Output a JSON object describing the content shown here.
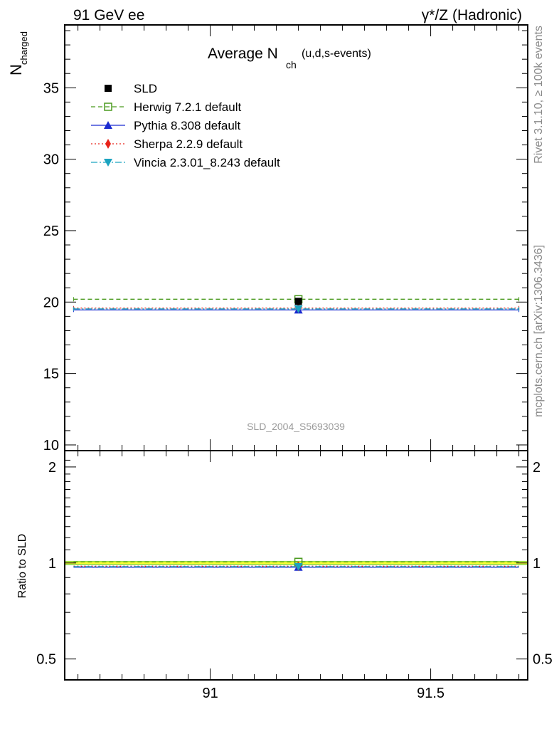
{
  "header": {
    "left": "91 GeV ee",
    "right": "γ*/Z (Hadronic)"
  },
  "side_labels": {
    "rivet": "Rivet 3.1.10, ≥ 100k events",
    "mcplots": "mcplots.cern.ch [arXiv:1306.3436]"
  },
  "colors": {
    "data": "#000000",
    "herwig": "#4a9a1e",
    "pythia": "#1a2bd0",
    "sherpa": "#e8231a",
    "vincia": "#1ba3c0",
    "band_inner": "#ffff33",
    "band_outer": "#99dd44"
  },
  "chart_data": [
    {
      "type": "line",
      "title_main": "Average N",
      "title_sub": "ch",
      "title_suffix": "(u,d,s-events)",
      "ylabel_main": "N",
      "ylabel_sub": "charged",
      "watermark": "SLD_2004_S5693039",
      "xlim": [
        90.67,
        91.72
      ],
      "ylim": [
        9.6,
        39.4
      ],
      "yticks": [
        10,
        15,
        20,
        25,
        30,
        35
      ],
      "ytick_labels": [
        "10",
        "15",
        "20",
        "25",
        "30",
        "35"
      ],
      "xticks": [
        91,
        91.5
      ],
      "legend": [
        {
          "label": "SLD",
          "key": "data"
        },
        {
          "label": "Herwig 7.2.1 default",
          "key": "herwig"
        },
        {
          "label": "Pythia 8.308 default",
          "key": "pythia"
        },
        {
          "label": "Sherpa 2.2.9 default",
          "key": "sherpa"
        },
        {
          "label": "Vincia 2.3.01_8.243 default",
          "key": "vincia"
        }
      ],
      "series": [
        {
          "name": "SLD",
          "key": "data",
          "x": 91.2,
          "y": 20.05,
          "yerr": 0.12
        },
        {
          "name": "Herwig 7.2.1 default",
          "key": "herwig",
          "x": 91.2,
          "y": 20.2,
          "xmin": 90.69,
          "xmax": 91.7
        },
        {
          "name": "Pythia 8.308 default",
          "key": "pythia",
          "x": 91.2,
          "y": 19.45,
          "xmin": 90.69,
          "xmax": 91.7
        },
        {
          "name": "Sherpa 2.2.9 default",
          "key": "sherpa",
          "x": 91.2,
          "y": 19.58,
          "xmin": 90.69,
          "xmax": 91.7
        },
        {
          "name": "Vincia 2.3.01_8.243 default",
          "key": "vincia",
          "x": 91.2,
          "y": 19.52,
          "xmin": 90.69,
          "xmax": 91.7
        }
      ]
    },
    {
      "type": "line",
      "ylabel": "Ratio to SLD",
      "xlim": [
        90.67,
        91.72
      ],
      "ylim": [
        0.43,
        2.25
      ],
      "yscale": "log",
      "yticks": [
        0.5,
        1,
        2
      ],
      "ytick_labels": [
        "0.5",
        "1",
        "2"
      ],
      "xticks": [
        91,
        91.5
      ],
      "xtick_labels": [
        "91",
        "91.5"
      ],
      "band": {
        "inner": [
          0.994,
          1.006
        ],
        "outer": [
          0.985,
          1.015
        ]
      },
      "series": [
        {
          "name": "Herwig 7.2.1 default",
          "key": "herwig",
          "y": 1.008
        },
        {
          "name": "Pythia 8.308 default",
          "key": "pythia",
          "y": 0.97
        },
        {
          "name": "Sherpa 2.2.9 default",
          "key": "sherpa",
          "y": 0.977
        },
        {
          "name": "Vincia 2.3.01_8.243 default",
          "key": "vincia",
          "y": 0.974
        }
      ]
    }
  ]
}
